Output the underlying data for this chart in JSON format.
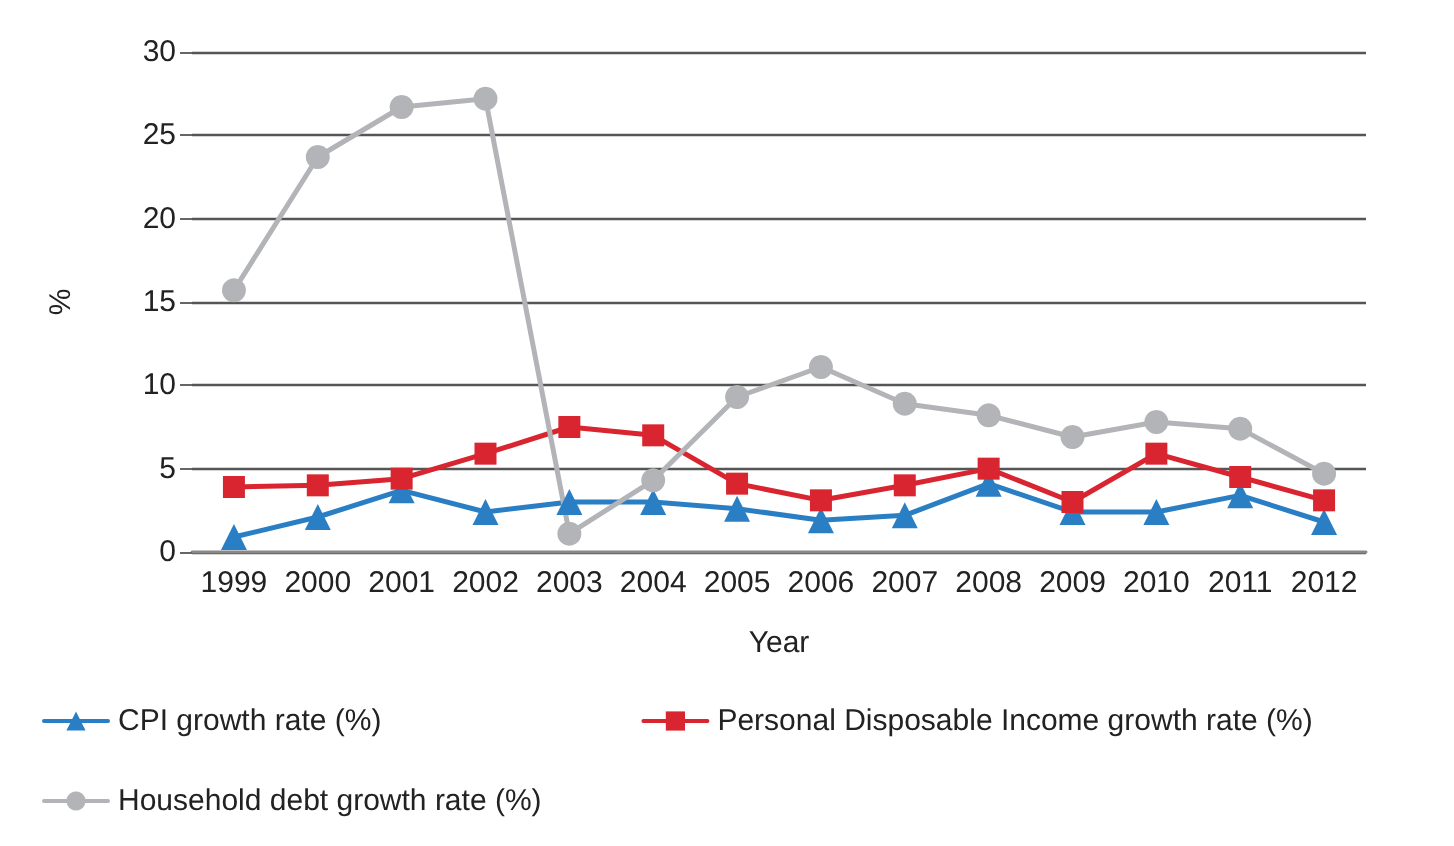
{
  "chart_data": {
    "type": "line",
    "xlabel": "Year",
    "ylabel": "%",
    "categories": [
      "1999",
      "2000",
      "2001",
      "2002",
      "2003",
      "2004",
      "2005",
      "2006",
      "2007",
      "2008",
      "2009",
      "2010",
      "2011",
      "2012"
    ],
    "series": [
      {
        "name": "CPI growth rate (%)",
        "color": "#2a7fc4",
        "marker": "triangle",
        "values": [
          0.9,
          2.1,
          3.7,
          2.4,
          3.0,
          3.0,
          2.6,
          1.9,
          2.2,
          4.1,
          2.4,
          2.4,
          3.4,
          1.8
        ]
      },
      {
        "name": "Personal Disposable Income growth rate (%)",
        "color": "#d9252f",
        "marker": "square",
        "values": [
          3.9,
          4.0,
          4.4,
          5.9,
          7.5,
          7.0,
          4.1,
          3.1,
          4.0,
          5.0,
          3.0,
          5.9,
          4.5,
          3.1
        ]
      },
      {
        "name": "Household debt growth rate (%)",
        "color": "#b3b4b7",
        "marker": "circle",
        "values": [
          15.7,
          23.7,
          26.7,
          27.2,
          1.1,
          4.3,
          9.3,
          11.1,
          8.9,
          8.2,
          6.9,
          7.8,
          7.4,
          4.7
        ]
      }
    ],
    "ylim": [
      0,
      30
    ],
    "yticks": [
      0,
      5,
      10,
      15,
      20,
      25,
      30
    ],
    "grid": "y",
    "legend": "bottom left"
  }
}
